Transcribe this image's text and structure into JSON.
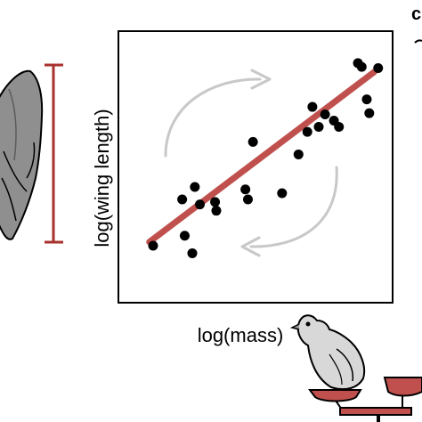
{
  "chart_data": {
    "type": "scatter",
    "xlabel": "log(mass)",
    "ylabel": "log(wing length)",
    "xlim": [
      0,
      10
    ],
    "ylim": [
      0,
      10
    ],
    "points": [
      {
        "x": 0.95,
        "y": 1.85
      },
      {
        "x": 2.1,
        "y": 3.7
      },
      {
        "x": 2.2,
        "y": 2.25
      },
      {
        "x": 2.5,
        "y": 1.55
      },
      {
        "x": 2.6,
        "y": 4.2
      },
      {
        "x": 2.8,
        "y": 3.5
      },
      {
        "x": 3.4,
        "y": 3.6
      },
      {
        "x": 3.45,
        "y": 3.25
      },
      {
        "x": 4.6,
        "y": 4.1
      },
      {
        "x": 4.7,
        "y": 3.7
      },
      {
        "x": 4.9,
        "y": 6.0
      },
      {
        "x": 6.05,
        "y": 3.95
      },
      {
        "x": 6.7,
        "y": 5.5
      },
      {
        "x": 7.05,
        "y": 6.4
      },
      {
        "x": 7.25,
        "y": 7.4
      },
      {
        "x": 7.5,
        "y": 6.6
      },
      {
        "x": 7.75,
        "y": 7.1
      },
      {
        "x": 8.1,
        "y": 6.85
      },
      {
        "x": 8.3,
        "y": 6.6
      },
      {
        "x": 9.05,
        "y": 9.15
      },
      {
        "x": 9.2,
        "y": 9.0
      },
      {
        "x": 9.4,
        "y": 7.7
      },
      {
        "x": 9.5,
        "y": 7.15
      },
      {
        "x": 9.85,
        "y": 8.95
      }
    ],
    "fit_line": {
      "x": [
        0.8,
        9.7
      ],
      "y": [
        2.0,
        8.8
      ]
    },
    "grid": false,
    "legend": "none",
    "colors": {
      "points": "#000000",
      "fit_line": "#c0504d",
      "arrows": "#c8c8c8",
      "scale_bar": "#a8322d"
    }
  },
  "corner_text": "c",
  "illustrations": [
    "bird-wing-icon",
    "bird-icon",
    "balance-scale-icon",
    "wing-length-scale-bar"
  ]
}
